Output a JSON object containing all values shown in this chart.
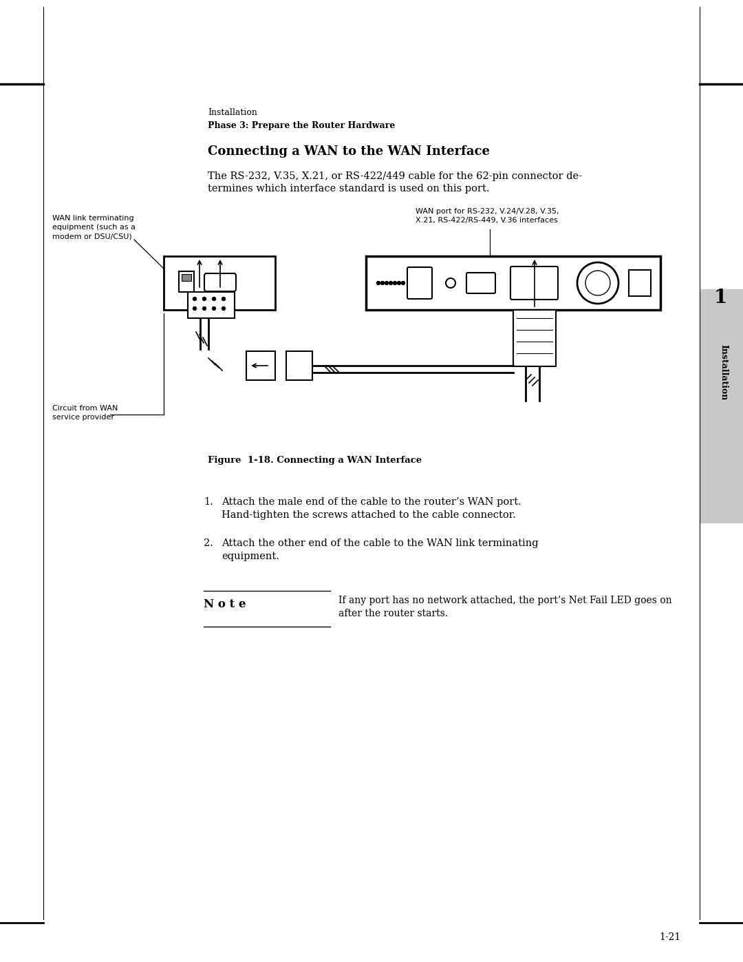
{
  "bg_color": "#ffffff",
  "text_color": "#000000",
  "gray_tab_color": "#c8c8c8",
  "top_label": "Installation",
  "phase_label": "Phase 3: Prepare the Router Hardware",
  "section_title": "Connecting a WAN to the WAN Interface",
  "body_line1": "The RS-232, V.35, X.21, or RS-422/449 cable for the 62-pin connector de-",
  "body_line2": "termines which interface standard is used on this port.",
  "label_wan_link_1": "WAN link terminating",
  "label_wan_link_2": "equipment (such as a",
  "label_wan_link_3": "modem or DSU/CSU)",
  "label_wan_port_1": "WAN port for RS-232, V.24/V.28, V.35,",
  "label_wan_port_2": "X.21, RS-422/RS-449, V.36 interfaces",
  "label_circuit_1": "Circuit from WAN",
  "label_circuit_2": "service provider",
  "figure_caption": "Figure  1-18. Connecting a WAN Interface",
  "step1_line1": "Attach the male end of the cable to the router’s WAN port.",
  "step1_line2": "Hand-tighten the screws attached to the cable connector.",
  "step2_line1": "Attach the other end of the cable to the WAN link terminating",
  "step2_line2": "equipment.",
  "note_label": "N o t e",
  "note_line1": "If any port has no network attached, the port’s Net Fail LED goes on",
  "note_line2": "after the router starts.",
  "side_tab_text": "Installation",
  "page_number": "1-21"
}
